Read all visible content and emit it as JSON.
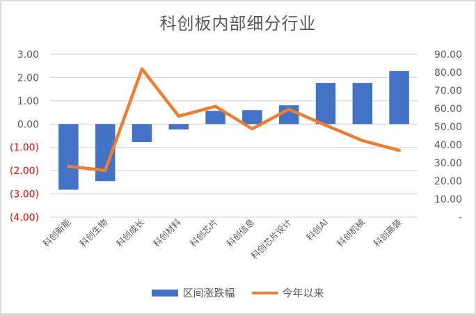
{
  "chart_data": {
    "type": "bar+line",
    "title": "科创板内部细分行业",
    "categories": [
      "科创新能",
      "科创生物",
      "科创成长",
      "科创材料",
      "科创芯片",
      "科创信息",
      "科创芯片设计",
      "科创AI",
      "科创机械",
      "科创高装"
    ],
    "series": [
      {
        "name": "区间涨跌幅",
        "type": "bar",
        "axis": "left",
        "color": "#4472c4",
        "values": [
          -2.82,
          -2.45,
          -0.77,
          -0.23,
          0.57,
          0.6,
          0.81,
          1.77,
          1.77,
          2.28
        ]
      },
      {
        "name": "今年以来",
        "type": "line",
        "axis": "right",
        "color": "#ed7d31",
        "values": [
          28.1,
          25.8,
          81.9,
          55.8,
          61.2,
          48.8,
          59.6,
          50.8,
          42.3,
          36.9
        ]
      }
    ],
    "left_axis": {
      "ylim": [
        -4,
        3
      ],
      "ticks": [
        "3.00",
        "2.00",
        "1.00",
        "0.00",
        "(1.00)",
        "(2.00)",
        "(3.00)",
        "(4.00)"
      ],
      "tick_values": [
        3,
        2,
        1,
        0,
        -1,
        -2,
        -3,
        -4
      ],
      "negative_color": "#ff0000",
      "positive_color": "#595959"
    },
    "right_axis": {
      "ylim": [
        0,
        90
      ],
      "ticks": [
        "90.00",
        "80.00",
        "70.00",
        "60.00",
        "50.00",
        "40.00",
        "30.00",
        "20.00",
        "10.00",
        "-"
      ],
      "tick_values": [
        90,
        80,
        70,
        60,
        50,
        40,
        30,
        20,
        10,
        0
      ]
    },
    "grid": true,
    "legend_position": "bottom",
    "xlabel": "",
    "ylabel": ""
  },
  "legend": {
    "bar_label": "区间涨跌幅",
    "line_label": "今年以来"
  }
}
